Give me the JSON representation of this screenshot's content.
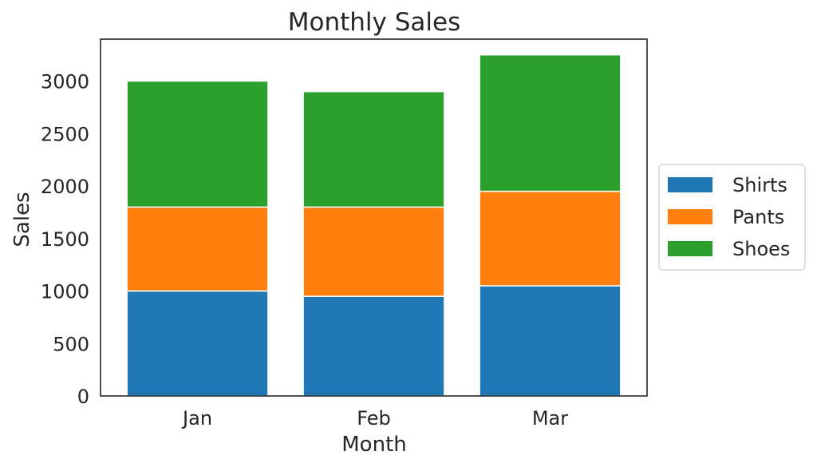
{
  "chart_data": {
    "type": "bar",
    "stacked": true,
    "title": "Monthly Sales",
    "xlabel": "Month",
    "ylabel": "Sales",
    "categories": [
      "Jan",
      "Feb",
      "Mar"
    ],
    "series": [
      {
        "name": "Shirts",
        "color": "#1f77b4",
        "values": [
          1000,
          950,
          1050
        ]
      },
      {
        "name": "Pants",
        "color": "#ff7f0e",
        "values": [
          800,
          850,
          900
        ]
      },
      {
        "name": "Shoes",
        "color": "#2ca02c",
        "values": [
          1200,
          1100,
          1300
        ]
      }
    ],
    "ylim": [
      0,
      3400
    ],
    "yticks": [
      0,
      500,
      1000,
      1500,
      2000,
      2500,
      3000
    ],
    "grid": false,
    "legend_position": "center-right (outside plot)"
  }
}
